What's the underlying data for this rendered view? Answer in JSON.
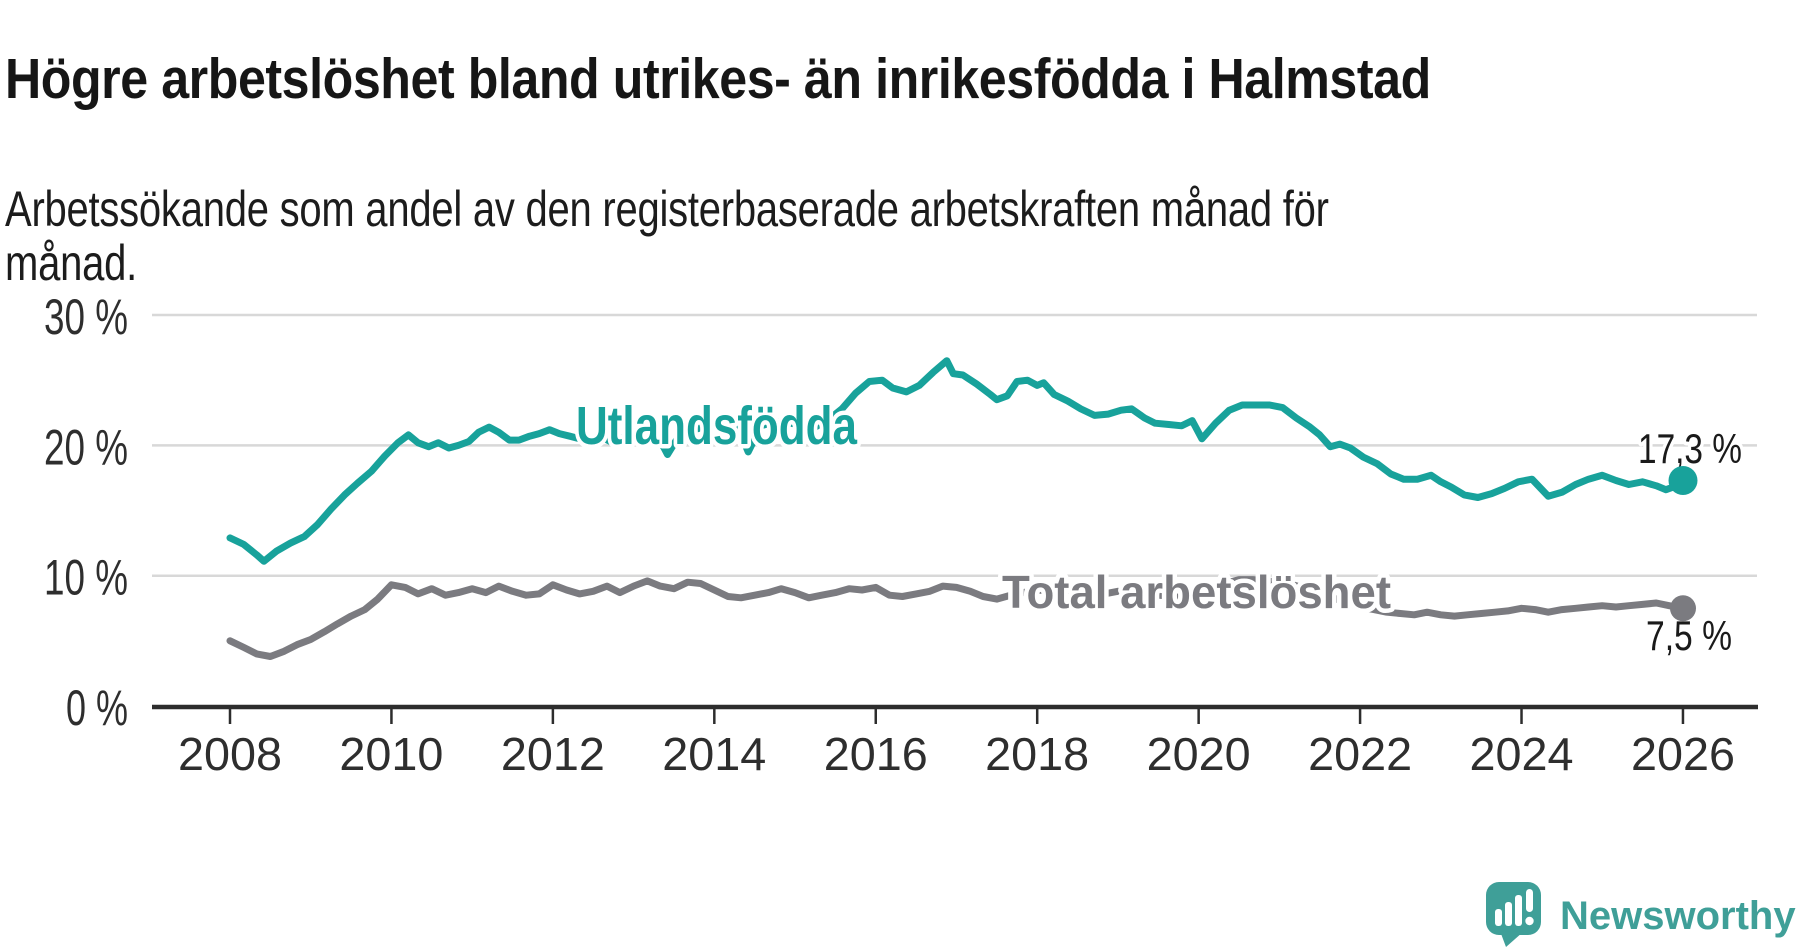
{
  "header": {
    "title": "Högre arbetslöshet bland utrikes- än inrikesfödda i Halmstad",
    "subtitle": "Arbetssökande som andel av den registerbaserade arbetskraften månad för månad."
  },
  "footer": {
    "brand": "Newsworthy"
  },
  "colors": {
    "accent_teal": "#18a29b",
    "total_gray": "#7b7b80",
    "grid": "#d8d8d8",
    "axis": "#2d2d2d",
    "tick_label": "#2e2e2e",
    "value_label": "#1a1a1a",
    "logo_teal": "#3f9f98",
    "halo": "#ffffff"
  },
  "chart_data": {
    "type": "line",
    "title": "Högre arbetslöshet bland utrikes- än inrikesfödda i Halmstad",
    "subtitle": "Arbetssökande som andel av den registerbaserade arbetskraften månad för månad.",
    "xlabel": "",
    "ylabel": "",
    "x_axis": {
      "ticks": [
        2008,
        2010,
        2012,
        2014,
        2016,
        2018,
        2020,
        2022,
        2024,
        2026
      ],
      "range": [
        2007.05,
        2026.9
      ]
    },
    "y_axis": {
      "ticks": [
        0,
        10,
        20,
        30
      ],
      "tick_suffix": " %",
      "range": [
        0,
        32
      ],
      "grid": true
    },
    "legend_position": "inline-labels",
    "series": [
      {
        "id": "utlandsfodda",
        "name": "Utlandsfödda",
        "end_label": "17,3 %",
        "end_value": 17.3,
        "color": "#18a29b",
        "points": [
          [
            2008.0,
            12.9
          ],
          [
            2008.17,
            12.4
          ],
          [
            2008.33,
            11.6
          ],
          [
            2008.42,
            11.1
          ],
          [
            2008.58,
            11.9
          ],
          [
            2008.75,
            12.5
          ],
          [
            2008.92,
            13.0
          ],
          [
            2009.08,
            13.9
          ],
          [
            2009.25,
            15.1
          ],
          [
            2009.42,
            16.2
          ],
          [
            2009.58,
            17.1
          ],
          [
            2009.75,
            18.0
          ],
          [
            2009.92,
            19.2
          ],
          [
            2010.08,
            20.2
          ],
          [
            2010.21,
            20.8
          ],
          [
            2010.33,
            20.2
          ],
          [
            2010.46,
            19.9
          ],
          [
            2010.58,
            20.2
          ],
          [
            2010.71,
            19.8
          ],
          [
            2010.83,
            20.0
          ],
          [
            2010.96,
            20.3
          ],
          [
            2011.08,
            21.0
          ],
          [
            2011.21,
            21.4
          ],
          [
            2011.33,
            21.0
          ],
          [
            2011.46,
            20.4
          ],
          [
            2011.58,
            20.4
          ],
          [
            2011.71,
            20.7
          ],
          [
            2011.83,
            20.9
          ],
          [
            2011.96,
            21.2
          ],
          [
            2012.08,
            20.9
          ],
          [
            2012.21,
            20.7
          ],
          [
            2012.33,
            20.5
          ],
          [
            2012.46,
            20.4
          ],
          [
            2012.58,
            20.7
          ],
          [
            2012.71,
            20.3
          ],
          [
            2012.83,
            20.5
          ],
          [
            2012.96,
            20.8
          ],
          [
            2013.08,
            21.2
          ],
          [
            2013.25,
            21.3
          ],
          [
            2013.42,
            19.3
          ],
          [
            2013.58,
            20.9
          ],
          [
            2013.75,
            21.2
          ],
          [
            2013.92,
            21.5
          ],
          [
            2014.08,
            21.8
          ],
          [
            2014.25,
            22.0
          ],
          [
            2014.42,
            19.5
          ],
          [
            2014.58,
            21.5
          ],
          [
            2014.75,
            21.8
          ],
          [
            2014.92,
            21.7
          ],
          [
            2015.08,
            21.6
          ],
          [
            2015.25,
            21.4
          ],
          [
            2015.42,
            22.0
          ],
          [
            2015.58,
            22.8
          ],
          [
            2015.75,
            24.0
          ],
          [
            2015.92,
            24.9
          ],
          [
            2016.08,
            25.0
          ],
          [
            2016.21,
            24.4
          ],
          [
            2016.38,
            24.1
          ],
          [
            2016.54,
            24.6
          ],
          [
            2016.71,
            25.6
          ],
          [
            2016.88,
            26.5
          ],
          [
            2016.96,
            25.5
          ],
          [
            2017.08,
            25.4
          ],
          [
            2017.25,
            24.7
          ],
          [
            2017.42,
            23.9
          ],
          [
            2017.5,
            23.5
          ],
          [
            2017.63,
            23.8
          ],
          [
            2017.75,
            24.9
          ],
          [
            2017.88,
            25.0
          ],
          [
            2018.0,
            24.6
          ],
          [
            2018.08,
            24.8
          ],
          [
            2018.21,
            23.9
          ],
          [
            2018.38,
            23.4
          ],
          [
            2018.54,
            22.8
          ],
          [
            2018.71,
            22.3
          ],
          [
            2018.88,
            22.4
          ],
          [
            2019.04,
            22.7
          ],
          [
            2019.17,
            22.8
          ],
          [
            2019.33,
            22.1
          ],
          [
            2019.46,
            21.7
          ],
          [
            2019.63,
            21.6
          ],
          [
            2019.79,
            21.5
          ],
          [
            2019.92,
            21.9
          ],
          [
            2020.04,
            20.5
          ],
          [
            2020.21,
            21.7
          ],
          [
            2020.38,
            22.7
          ],
          [
            2020.54,
            23.1
          ],
          [
            2020.71,
            23.1
          ],
          [
            2020.88,
            23.1
          ],
          [
            2021.04,
            22.9
          ],
          [
            2021.21,
            22.1
          ],
          [
            2021.38,
            21.4
          ],
          [
            2021.5,
            20.8
          ],
          [
            2021.63,
            19.9
          ],
          [
            2021.75,
            20.1
          ],
          [
            2021.88,
            19.8
          ],
          [
            2022.04,
            19.1
          ],
          [
            2022.21,
            18.6
          ],
          [
            2022.38,
            17.8
          ],
          [
            2022.54,
            17.4
          ],
          [
            2022.71,
            17.4
          ],
          [
            2022.88,
            17.7
          ],
          [
            2023.0,
            17.2
          ],
          [
            2023.13,
            16.8
          ],
          [
            2023.29,
            16.2
          ],
          [
            2023.46,
            16.0
          ],
          [
            2023.63,
            16.3
          ],
          [
            2023.79,
            16.7
          ],
          [
            2023.96,
            17.2
          ],
          [
            2024.13,
            17.4
          ],
          [
            2024.33,
            16.1
          ],
          [
            2024.5,
            16.4
          ],
          [
            2024.67,
            17.0
          ],
          [
            2024.83,
            17.4
          ],
          [
            2025.0,
            17.7
          ],
          [
            2025.17,
            17.3
          ],
          [
            2025.33,
            17.0
          ],
          [
            2025.5,
            17.2
          ],
          [
            2025.67,
            16.9
          ],
          [
            2025.79,
            16.6
          ],
          [
            2025.92,
            16.9
          ],
          [
            2026.0,
            17.3
          ]
        ]
      },
      {
        "id": "total",
        "name": "Total arbetslöshet",
        "end_label": "7,5 %",
        "end_value": 7.5,
        "color": "#7b7b80",
        "points": [
          [
            2008.0,
            5.0
          ],
          [
            2008.17,
            4.5
          ],
          [
            2008.33,
            4.0
          ],
          [
            2008.5,
            3.8
          ],
          [
            2008.67,
            4.2
          ],
          [
            2008.83,
            4.7
          ],
          [
            2009.0,
            5.1
          ],
          [
            2009.17,
            5.7
          ],
          [
            2009.33,
            6.3
          ],
          [
            2009.5,
            6.9
          ],
          [
            2009.67,
            7.4
          ],
          [
            2009.83,
            8.2
          ],
          [
            2010.0,
            9.3
          ],
          [
            2010.17,
            9.1
          ],
          [
            2010.33,
            8.6
          ],
          [
            2010.5,
            9.0
          ],
          [
            2010.67,
            8.5
          ],
          [
            2010.83,
            8.7
          ],
          [
            2011.0,
            9.0
          ],
          [
            2011.17,
            8.7
          ],
          [
            2011.33,
            9.2
          ],
          [
            2011.5,
            8.8
          ],
          [
            2011.67,
            8.5
          ],
          [
            2011.83,
            8.6
          ],
          [
            2012.0,
            9.3
          ],
          [
            2012.17,
            8.9
          ],
          [
            2012.33,
            8.6
          ],
          [
            2012.5,
            8.8
          ],
          [
            2012.67,
            9.2
          ],
          [
            2012.83,
            8.7
          ],
          [
            2013.0,
            9.2
          ],
          [
            2013.17,
            9.6
          ],
          [
            2013.33,
            9.2
          ],
          [
            2013.5,
            9.0
          ],
          [
            2013.67,
            9.5
          ],
          [
            2013.83,
            9.4
          ],
          [
            2014.0,
            8.9
          ],
          [
            2014.17,
            8.4
          ],
          [
            2014.33,
            8.3
          ],
          [
            2014.5,
            8.5
          ],
          [
            2014.67,
            8.7
          ],
          [
            2014.83,
            9.0
          ],
          [
            2015.0,
            8.7
          ],
          [
            2015.17,
            8.3
          ],
          [
            2015.33,
            8.5
          ],
          [
            2015.5,
            8.7
          ],
          [
            2015.67,
            9.0
          ],
          [
            2015.83,
            8.9
          ],
          [
            2016.0,
            9.1
          ],
          [
            2016.17,
            8.5
          ],
          [
            2016.33,
            8.4
          ],
          [
            2016.5,
            8.6
          ],
          [
            2016.67,
            8.8
          ],
          [
            2016.83,
            9.2
          ],
          [
            2017.0,
            9.1
          ],
          [
            2017.17,
            8.8
          ],
          [
            2017.33,
            8.4
          ],
          [
            2017.5,
            8.2
          ],
          [
            2017.67,
            8.5
          ],
          [
            2017.83,
            8.7
          ],
          [
            2018.0,
            8.9
          ],
          [
            2018.17,
            8.8
          ],
          [
            2018.33,
            8.6
          ],
          [
            2018.5,
            8.8
          ],
          [
            2018.67,
            8.7
          ],
          [
            2018.83,
            8.6
          ],
          [
            2019.0,
            8.8
          ],
          [
            2019.17,
            8.6
          ],
          [
            2019.33,
            8.4
          ],
          [
            2019.5,
            8.5
          ],
          [
            2019.67,
            8.4
          ],
          [
            2019.83,
            8.3
          ],
          [
            2020.0,
            8.5
          ],
          [
            2020.17,
            9.0
          ],
          [
            2020.33,
            9.4
          ],
          [
            2020.5,
            9.7
          ],
          [
            2020.67,
            9.7
          ],
          [
            2020.83,
            9.6
          ],
          [
            2021.0,
            9.5
          ],
          [
            2021.17,
            9.3
          ],
          [
            2021.33,
            9.0
          ],
          [
            2021.5,
            8.6
          ],
          [
            2021.67,
            8.3
          ],
          [
            2021.83,
            7.9
          ],
          [
            2022.0,
            7.6
          ],
          [
            2022.17,
            7.4
          ],
          [
            2022.33,
            7.2
          ],
          [
            2022.5,
            7.1
          ],
          [
            2022.67,
            7.0
          ],
          [
            2022.83,
            7.2
          ],
          [
            2023.0,
            7.0
          ],
          [
            2023.17,
            6.9
          ],
          [
            2023.33,
            7.0
          ],
          [
            2023.5,
            7.1
          ],
          [
            2023.67,
            7.2
          ],
          [
            2023.83,
            7.3
          ],
          [
            2024.0,
            7.5
          ],
          [
            2024.17,
            7.4
          ],
          [
            2024.33,
            7.2
          ],
          [
            2024.5,
            7.4
          ],
          [
            2024.67,
            7.5
          ],
          [
            2024.83,
            7.6
          ],
          [
            2025.0,
            7.7
          ],
          [
            2025.17,
            7.6
          ],
          [
            2025.33,
            7.7
          ],
          [
            2025.5,
            7.8
          ],
          [
            2025.67,
            7.9
          ],
          [
            2025.83,
            7.7
          ],
          [
            2026.0,
            7.5
          ]
        ]
      }
    ]
  }
}
